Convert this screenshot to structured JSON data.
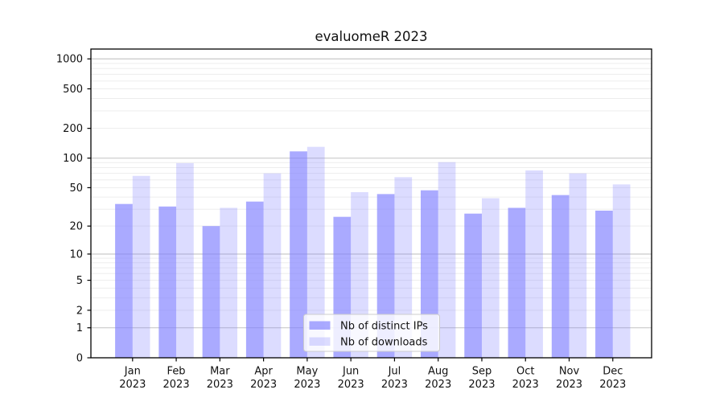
{
  "chart_data": {
    "type": "bar",
    "title": "evaluomeR 2023",
    "year_label": "2023",
    "categories": [
      "Jan",
      "Feb",
      "Mar",
      "Apr",
      "May",
      "Jun",
      "Jul",
      "Aug",
      "Sep",
      "Oct",
      "Nov",
      "Dec"
    ],
    "series": [
      {
        "name": "Nb of distinct IPs",
        "values": [
          34,
          32,
          20,
          36,
          117,
          25,
          43,
          47,
          27,
          31,
          42,
          29
        ],
        "fill": "#8080ff",
        "fill_opacity": 0.67,
        "rendered_color": "#aaaaf9"
      },
      {
        "name": "Nb of downloads",
        "values": [
          66,
          89,
          31,
          70,
          130,
          45,
          64,
          91,
          39,
          75,
          70,
          54
        ],
        "fill": "#8080ff",
        "fill_opacity": 0.28,
        "rendered_color": "#dcdcf9"
      }
    ],
    "yscale": "log10(value+1)",
    "y_ticks": [
      0,
      1,
      2,
      5,
      10,
      20,
      50,
      100,
      200,
      500,
      1000
    ],
    "y_major_gridlines": [
      1,
      10,
      100,
      1000
    ],
    "ylim": [
      0,
      1255
    ],
    "grid": true,
    "legend": {
      "position": "lower center",
      "entries": [
        "Nb of distinct IPs",
        "Nb of downloads"
      ]
    },
    "colors": {
      "grid_major": "#c9c9c9",
      "grid_minor": "#ededed",
      "axis": "#000000",
      "text": "#111111",
      "legend_border": "#cccccc",
      "legend_bg": "#ffffff"
    }
  }
}
